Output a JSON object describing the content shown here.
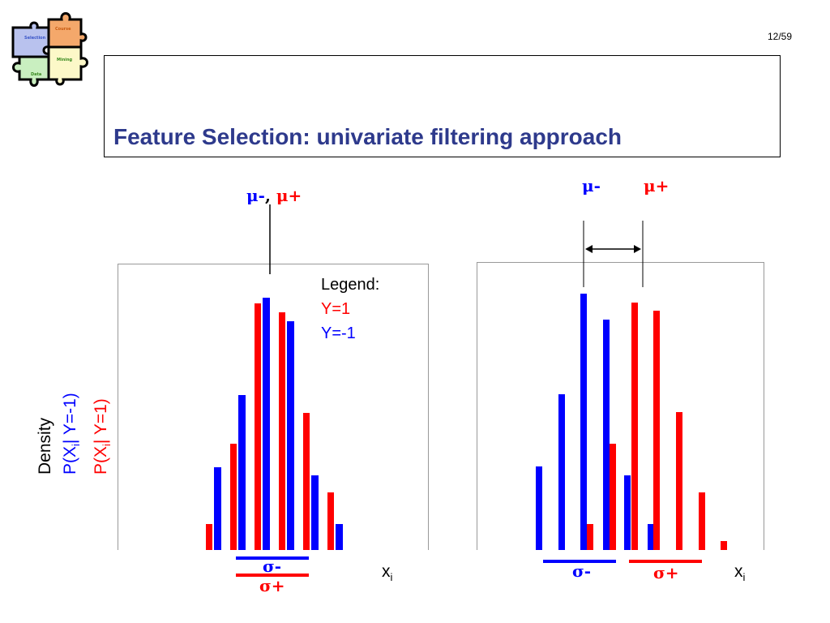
{
  "logo": {
    "pieces": [
      "Selection",
      "Course",
      "Mining",
      "Data"
    ],
    "colors": [
      "#B9C2EE",
      "#F4A86B",
      "#FCF8C8",
      "#C9EFC0"
    ]
  },
  "page": {
    "number": "12/59"
  },
  "slide": {
    "title": "Feature Selection: univariate filtering approach"
  },
  "colors": {
    "positive": "#FF0000",
    "negative": "#0000FF",
    "title": "#2E3A8C"
  },
  "left_panel": {
    "mu_neg": "μ-",
    "sep": ",",
    "mu_pos": "μ+",
    "sigma_neg": "σ-",
    "sigma_pos": "σ+",
    "legend": {
      "title": "Legend:",
      "pos": "Y=1",
      "neg": "Y=-1"
    },
    "ylabel": {
      "density": "Density",
      "neg_prefix": "P(X",
      "neg_suffix": "| Y=-1)",
      "pos_prefix": "P(X",
      "pos_suffix": "| Y=1)",
      "sub": "i"
    },
    "xlabel": {
      "x": "x",
      "sub": "i"
    },
    "histogram": {
      "ylim": [
        0,
        100
      ],
      "bins": [
        {
          "pos": 9,
          "neg": 29
        },
        {
          "pos": 37,
          "neg": 54
        },
        {
          "pos": 86,
          "neg": 88
        },
        {
          "pos": 83,
          "neg": 80
        },
        {
          "pos": 48,
          "neg": 26
        },
        {
          "pos": 20,
          "neg": 9
        }
      ]
    }
  },
  "right_panel": {
    "mu_neg": "μ-",
    "mu_pos": "μ+",
    "sigma_neg": "σ-",
    "sigma_pos": "σ+",
    "xlabel": {
      "x": "x",
      "sub": "i"
    },
    "histogram": {
      "ylim": [
        0,
        100
      ],
      "neg": [
        29,
        54,
        89,
        80,
        26,
        9
      ],
      "pos": [
        9,
        37,
        86,
        83,
        48,
        20,
        3
      ]
    }
  }
}
